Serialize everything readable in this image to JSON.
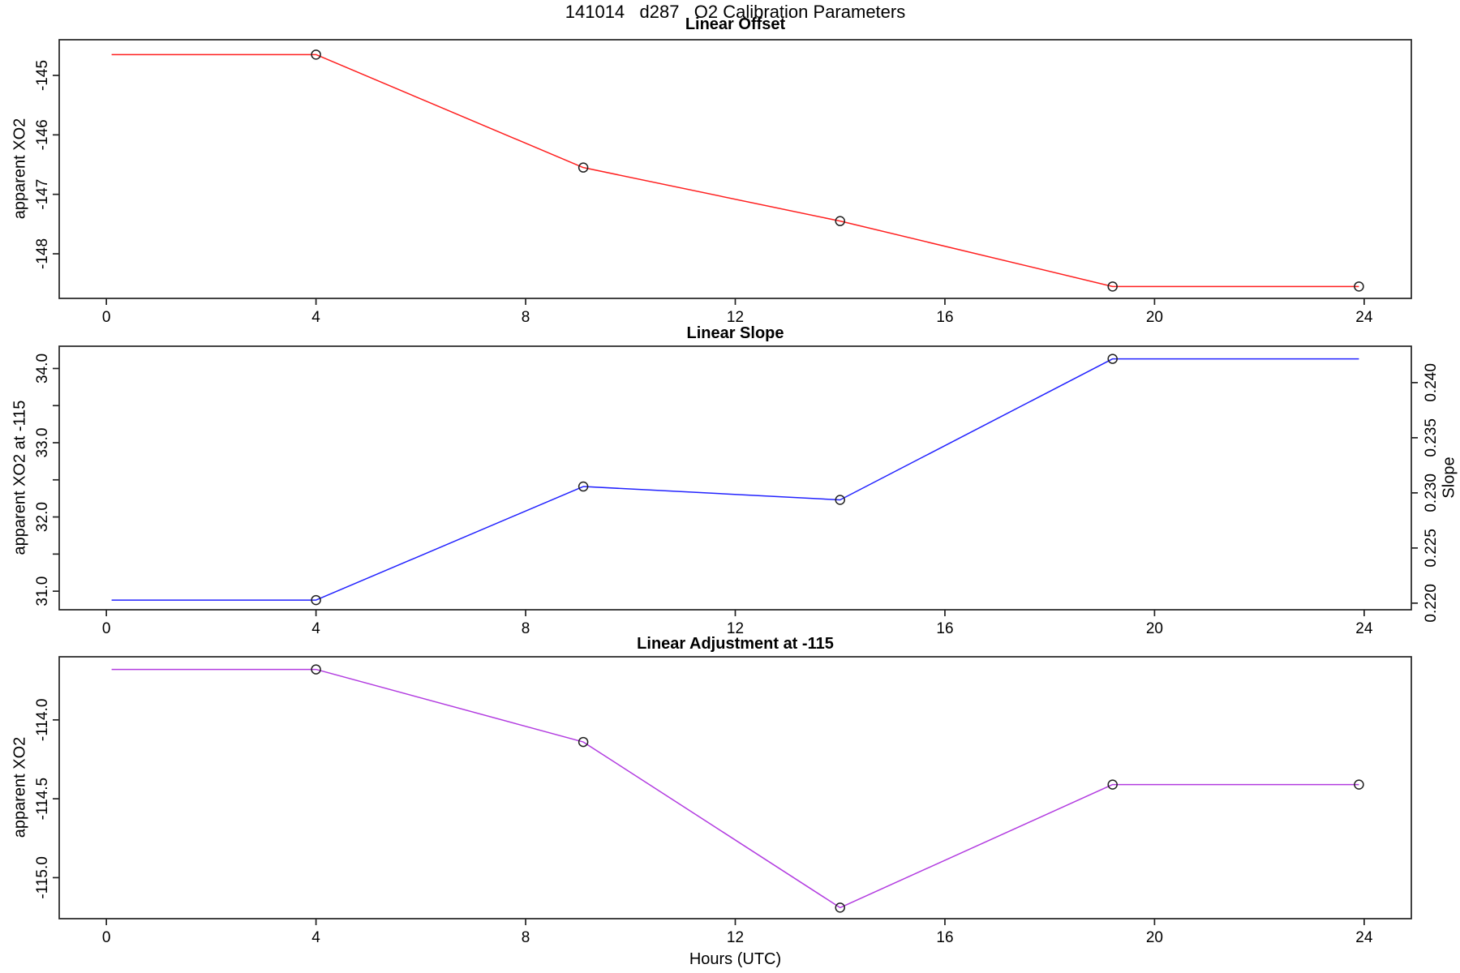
{
  "figure": {
    "title": "141014   d287   O2 Calibration Parameters",
    "xlabel": "Hours (UTC)",
    "background": "#ffffff",
    "axis_color": "#222222",
    "marker_style": "open-circle",
    "marker_color": "#202020"
  },
  "chart_data": [
    {
      "type": "line",
      "title": "Linear Offset",
      "ylabel": "apparent XO2",
      "xlim": [
        -0.9,
        24.9
      ],
      "ylim": [
        -148.75,
        -144.4
      ],
      "xticks": [
        0,
        4,
        8,
        12,
        16,
        20,
        24
      ],
      "xtick_labels": [
        "0",
        "4",
        "8",
        "12",
        "16",
        "20",
        "24"
      ],
      "yticks": [
        -145,
        -146,
        -147,
        -148
      ],
      "ytick_labels": [
        "-145",
        "-146",
        "-147",
        "-148"
      ],
      "grid": false,
      "legend": "none",
      "series": [
        {
          "name": "linear-offset",
          "color": "#ff1f1f",
          "x": [
            0.1,
            4.0,
            9.1,
            14.0,
            19.2,
            23.9
          ],
          "y": [
            -144.65,
            -144.65,
            -146.55,
            -147.45,
            -148.55,
            -148.55
          ],
          "marker_x": [
            4.0,
            9.1,
            14.0,
            19.2,
            23.9
          ],
          "marker_y": [
            -144.65,
            -146.55,
            -147.45,
            -148.55,
            -148.55
          ]
        }
      ]
    },
    {
      "type": "line",
      "title": "Linear Slope",
      "ylabel": "apparent XO2 at -115",
      "ylabel_right": "Slope",
      "xlim": [
        -0.9,
        24.9
      ],
      "ylim": [
        30.75,
        34.3
      ],
      "ylim_right": [
        0.2194,
        0.2433
      ],
      "xticks": [
        0,
        4,
        8,
        12,
        16,
        20,
        24
      ],
      "xtick_labels": [
        "0",
        "4",
        "8",
        "12",
        "16",
        "20",
        "24"
      ],
      "yticks": [
        31.0,
        32.0,
        33.0,
        34.0
      ],
      "ytick_labels": [
        "31.0",
        "32.0",
        "33.0",
        "34.0"
      ],
      "yticks_minor": [
        31.5,
        32.5,
        33.5
      ],
      "yticks_right": [
        0.22,
        0.225,
        0.23,
        0.235,
        0.24
      ],
      "ytick_labels_right": [
        "0.220",
        "0.225",
        "0.230",
        "0.235",
        "0.240"
      ],
      "grid": false,
      "legend": "none",
      "series": [
        {
          "name": "linear-slope",
          "color": "#2222ff",
          "x": [
            0.1,
            4.0,
            9.1,
            14.0,
            19.2,
            23.9
          ],
          "y": [
            30.88,
            30.88,
            32.41,
            32.23,
            34.13,
            34.13
          ],
          "y_right_equivalent": [
            0.2204,
            0.2204,
            0.2307,
            0.2295,
            0.2424,
            0.2424
          ],
          "marker_x": [
            4.0,
            9.1,
            14.0,
            19.2
          ],
          "marker_y": [
            30.88,
            32.41,
            32.23,
            34.13
          ]
        }
      ]
    },
    {
      "type": "line",
      "title": "Linear Adjustment at -115",
      "ylabel": "apparent XO2",
      "xlim": [
        -0.9,
        24.9
      ],
      "ylim": [
        -115.26,
        -113.6
      ],
      "xticks": [
        0,
        4,
        8,
        12,
        16,
        20,
        24
      ],
      "xtick_labels": [
        "0",
        "4",
        "8",
        "12",
        "16",
        "20",
        "24"
      ],
      "yticks": [
        -114.0,
        -114.5,
        -115.0
      ],
      "ytick_labels": [
        "-114.0",
        "-114.5",
        "-115.0"
      ],
      "grid": false,
      "legend": "none",
      "series": [
        {
          "name": "linear-adjustment",
          "color": "#b23ce0",
          "x": [
            0.1,
            4.0,
            9.1,
            14.0,
            19.2,
            23.9
          ],
          "y": [
            -113.68,
            -113.68,
            -114.14,
            -115.19,
            -114.41,
            -114.41
          ],
          "marker_x": [
            4.0,
            9.1,
            14.0,
            19.2,
            23.9
          ],
          "marker_y": [
            -113.68,
            -114.14,
            -115.19,
            -114.41,
            -114.41
          ]
        }
      ]
    }
  ]
}
